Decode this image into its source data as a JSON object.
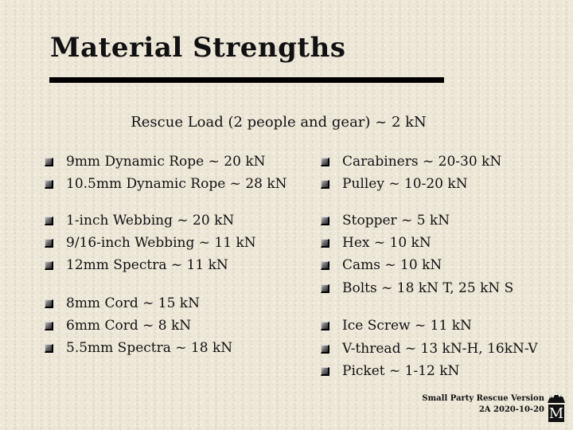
{
  "slide": {
    "title": "Material Strengths",
    "subtitle": "Rescue Load (2 people and gear) ~ 2 kN"
  },
  "left_column": [
    {
      "items": [
        "9mm Dynamic Rope ~ 20 kN",
        "10.5mm Dynamic Rope ~ 28 kN"
      ]
    },
    {
      "items": [
        "1-inch Webbing ~ 20 kN",
        "9/16-inch Webbing ~ 11 kN",
        "12mm Spectra ~ 11 kN"
      ]
    },
    {
      "items": [
        "8mm Cord ~ 15 kN",
        "6mm Cord ~ 8 kN",
        "5.5mm Spectra ~ 18 kN"
      ]
    }
  ],
  "right_column": [
    {
      "items": [
        "Carabiners ~ 20-30 kN",
        "Pulley ~ 10-20 kN"
      ]
    },
    {
      "items": [
        "Stopper ~ 5 kN",
        "Hex ~ 10 kN",
        "Cams ~ 10 kN",
        "Bolts ~ 18 kN T, 25 kN S"
      ]
    },
    {
      "items": [
        "Ice  Screw ~ 11 kN",
        "V-thread  ~ 13 kN-H, 16kN-V",
        "Picket ~ 1-12 kN"
      ]
    }
  ],
  "footer": {
    "line1": "Small Party Rescue  Version",
    "line2": "2A  2020-10-20",
    "logo_letter": "M"
  },
  "icons": {
    "bullet": "hollow-square-bullet-icon",
    "logo": "mountaineers-logo-icon"
  },
  "colors": {
    "background": "#ece7d6",
    "text": "#111111",
    "rule": "#000000"
  }
}
